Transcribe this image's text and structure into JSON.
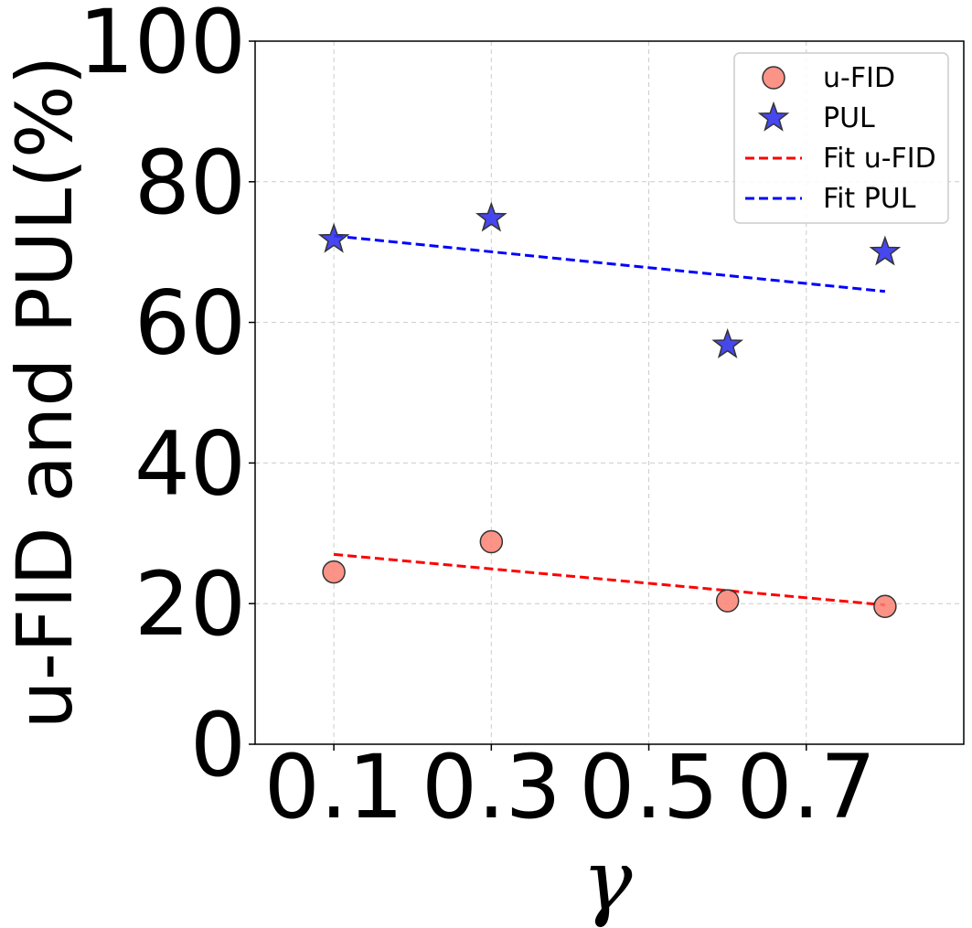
{
  "chart_data": {
    "type": "scatter",
    "title": "",
    "xlabel": "γ",
    "ylabel": "u-FID and PUL(%)",
    "xlim": [
      0.0,
      0.9
    ],
    "ylim": [
      0,
      100
    ],
    "xticks": [
      "0.1",
      "0.3",
      "0.5",
      "0.7"
    ],
    "xtick_values": [
      0.1,
      0.3,
      0.5,
      0.7
    ],
    "yticks": [
      "0",
      "20",
      "40",
      "60",
      "80",
      "100"
    ],
    "ytick_values": [
      0,
      20,
      40,
      60,
      80,
      100
    ],
    "grid": true,
    "legend_position": "top-right",
    "series": [
      {
        "name": "u-FID",
        "kind": "scatter",
        "marker": "circle",
        "color": "#fa8072",
        "x": [
          0.1,
          0.3,
          0.6,
          0.8
        ],
        "y": [
          24.5,
          28.8,
          20.4,
          19.6
        ]
      },
      {
        "name": "PUL",
        "kind": "scatter",
        "marker": "star",
        "color": "#3333ee",
        "x": [
          0.1,
          0.3,
          0.6,
          0.8
        ],
        "y": [
          71.8,
          74.8,
          56.8,
          70.0
        ]
      },
      {
        "name": "Fit u-FID",
        "kind": "line",
        "style": "dashed",
        "color": "#ff0000",
        "x": [
          0.1,
          0.8
        ],
        "y": [
          27.0,
          19.8
        ]
      },
      {
        "name": "Fit PUL",
        "kind": "line",
        "style": "dashed",
        "color": "#0000ff",
        "x": [
          0.1,
          0.8
        ],
        "y": [
          72.3,
          64.4
        ]
      }
    ]
  }
}
